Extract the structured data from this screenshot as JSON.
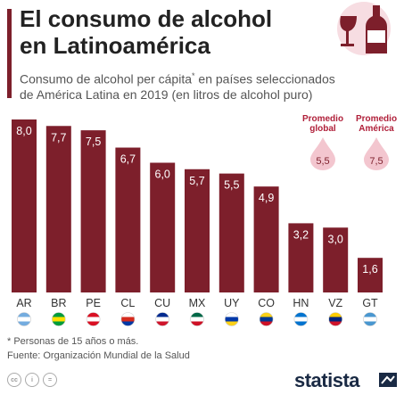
{
  "header": {
    "title_line1": "El consumo de alcohol",
    "title_line2": "en Latinoamérica",
    "subtitle_line1": "Consumo de alcohol per cápita",
    "subtitle_mark": "*",
    "subtitle_line1b": " en países seleccionados",
    "subtitle_line2": "de América Latina en 2019 (en litros de alcohol puro)"
  },
  "averages": [
    {
      "label_line1": "Promedio",
      "label_line2": "global",
      "value": "5,5"
    },
    {
      "label_line1": "Promedio",
      "label_line2": "América",
      "value": "7,5"
    }
  ],
  "footnote": {
    "note": "* Personas de 15 años o más.",
    "source": "Fuente: Organización Mundial de la Salud"
  },
  "brand": "statista",
  "license_icons": [
    "cc",
    "i",
    "="
  ],
  "colors": {
    "bar": "#7d1f2b",
    "accent": "#b0203a",
    "drop": "#f3c6cf"
  },
  "chart_data": {
    "type": "bar",
    "categories": [
      "AR",
      "BR",
      "PE",
      "CL",
      "CU",
      "MX",
      "UY",
      "CO",
      "HN",
      "VZ",
      "GT"
    ],
    "values": [
      8.0,
      7.7,
      7.5,
      6.7,
      6.0,
      5.7,
      5.5,
      4.9,
      3.2,
      3.0,
      1.6
    ],
    "value_labels": [
      "8,0",
      "7,7",
      "7,5",
      "6,7",
      "6,0",
      "5,7",
      "5,5",
      "4,9",
      "3,2",
      "3,0",
      "1,6"
    ],
    "title": "",
    "xlabel": "",
    "ylabel": "",
    "ylim": [
      0,
      8.0
    ]
  }
}
